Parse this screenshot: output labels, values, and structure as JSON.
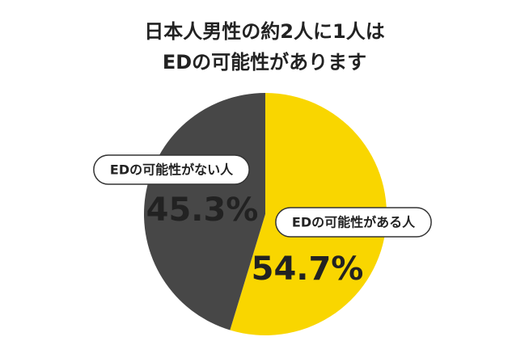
{
  "chart_data": {
    "type": "pie",
    "title": [
      "日本人男性の約2人に1人は",
      "EDの可能性があります"
    ],
    "categories": [
      "EDの可能性がある人",
      "EDの可能性がない人"
    ],
    "values": [
      54.7,
      45.3
    ],
    "value_labels": [
      "54.7%",
      "45.3%"
    ],
    "colors": [
      "#f9d600",
      "#474747"
    ]
  }
}
